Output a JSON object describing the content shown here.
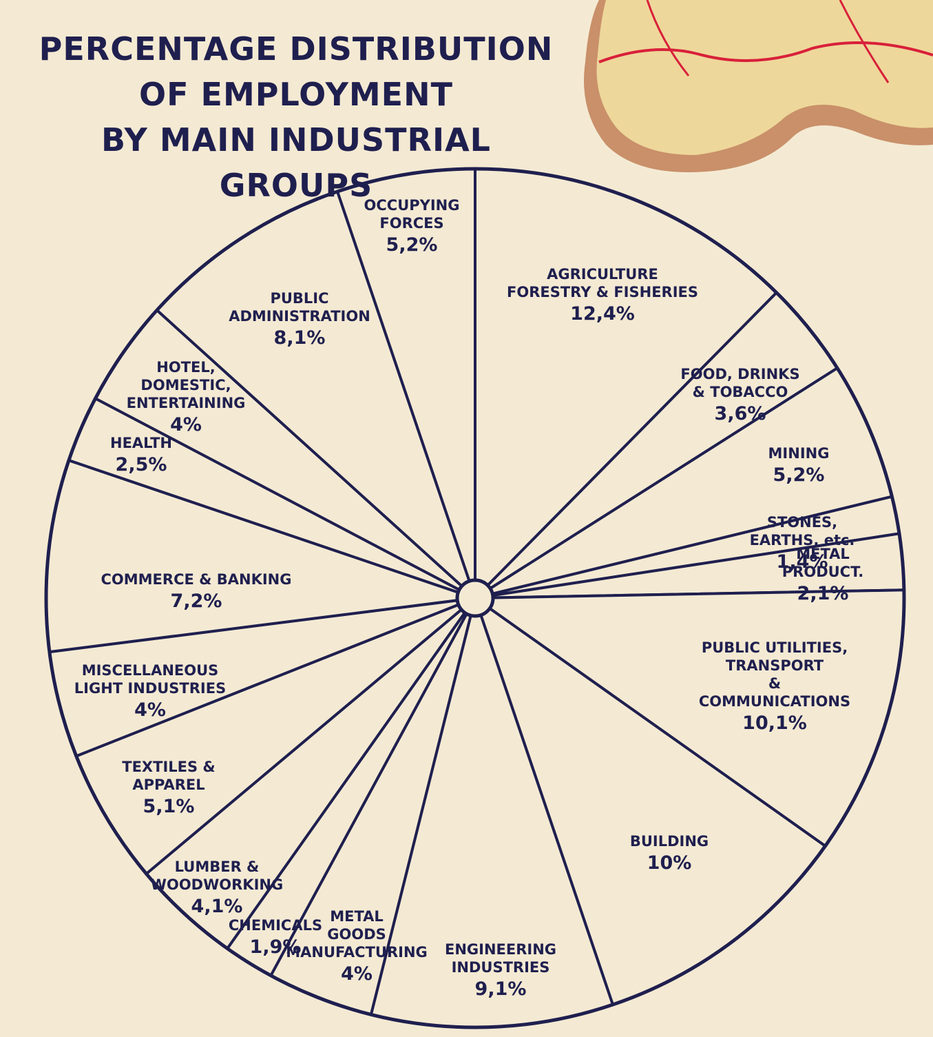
{
  "chart_data": {
    "type": "pie",
    "title": "PERCENTAGE DISTRIBUTION\nOF EMPLOYMENT\nBY MAIN INDUSTRIAL GROUPS",
    "categories": [
      "AGRICULTURE\nFORESTRY & FISHERIES",
      "FOOD, DRINKS\n& TOBACCO",
      "MINING",
      "STONES, EARTHS, etc.",
      "METAL PRODUCT.",
      "PUBLIC UTILITIES, TRANSPORT\n& COMMUNICATIONS",
      "BUILDING",
      "ENGINEERING\nINDUSTRIES",
      "METAL\nGOODS\nMANUFACTURING",
      "CHEMICALS",
      "LUMBER &\nWOODWORKING",
      "TEXTILES &\nAPPAREL",
      "MISCELLANEOUS\nLIGHT INDUSTRIES",
      "COMMERCE & BANKING",
      "HEALTH",
      "HOTEL,\nDOMESTIC,\nENTERTAINING",
      "PUBLIC\nADMINISTRATION",
      "OCCUPYING\nFORCES"
    ],
    "values": [
      12.4,
      3.6,
      5.2,
      1.4,
      2.1,
      10.1,
      10,
      9.1,
      4,
      1.9,
      4.1,
      5.1,
      4,
      7.2,
      2.5,
      4,
      8.1,
      5.2
    ],
    "value_labels": [
      "12,4%",
      "3,6%",
      "5,2%",
      "1,4%",
      "2,1%",
      "10,1%",
      "10%",
      "9,1%",
      "4%",
      "1,9%",
      "4,1%",
      "5,1%",
      "4%",
      "7,2%",
      "2,5%",
      "4%",
      "8,1%",
      "5,2%"
    ],
    "color": "#f4ead3",
    "line_color": "#1f1f4f"
  }
}
